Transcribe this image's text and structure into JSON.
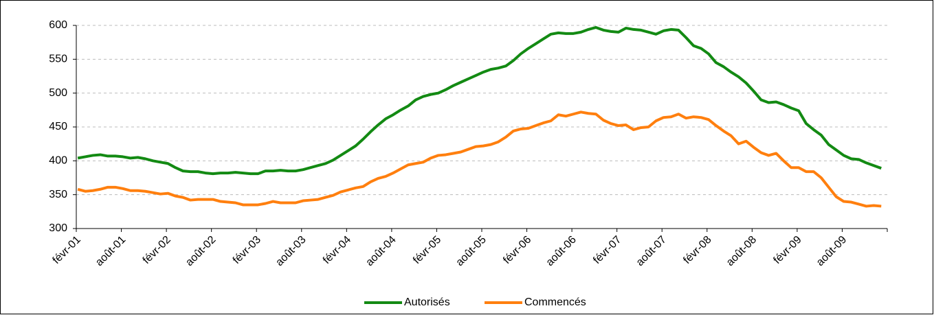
{
  "chart_data": {
    "type": "line",
    "categories": [
      "févr-01",
      null,
      null,
      null,
      null,
      null,
      "août-01",
      null,
      null,
      null,
      null,
      null,
      "févr-02",
      null,
      null,
      null,
      null,
      null,
      "août-02",
      null,
      null,
      null,
      null,
      null,
      "févr-03",
      null,
      null,
      null,
      null,
      null,
      "août-03",
      null,
      null,
      null,
      null,
      null,
      "févr-04",
      null,
      null,
      null,
      null,
      null,
      "août-04",
      null,
      null,
      null,
      null,
      null,
      "févr-05",
      null,
      null,
      null,
      null,
      null,
      "août-05",
      null,
      null,
      null,
      null,
      null,
      "févr-06",
      null,
      null,
      null,
      null,
      null,
      "août-06",
      null,
      null,
      null,
      null,
      null,
      "févr-07",
      null,
      null,
      null,
      null,
      null,
      "août-07",
      null,
      null,
      null,
      null,
      null,
      "févr-08",
      null,
      null,
      null,
      null,
      null,
      "août-08",
      null,
      null,
      null,
      null,
      null,
      "févr-09",
      null,
      null,
      null,
      null,
      null,
      "août-09",
      null,
      null,
      null,
      null,
      null
    ],
    "series": [
      {
        "name": "Autorisés",
        "color": "#138a13",
        "values": [
          404,
          406,
          408,
          409,
          407,
          407,
          406,
          404,
          405,
          403,
          400,
          398,
          396,
          390,
          385,
          384,
          384,
          382,
          381,
          382,
          382,
          383,
          382,
          381,
          381,
          385,
          385,
          386,
          385,
          385,
          387,
          390,
          393,
          396,
          401,
          408,
          415,
          422,
          432,
          443,
          453,
          462,
          468,
          475,
          481,
          490,
          495,
          498,
          500,
          505,
          511,
          516,
          521,
          526,
          531,
          535,
          537,
          540,
          548,
          558,
          566,
          573,
          580,
          587,
          589,
          588,
          588,
          590,
          594,
          597,
          593,
          591,
          590,
          596,
          594,
          593,
          590,
          587,
          592,
          594,
          593,
          582,
          570,
          566,
          558,
          545,
          539,
          531,
          524,
          515,
          503,
          490,
          486,
          487,
          483,
          478,
          474,
          455,
          446,
          438,
          424,
          416,
          408,
          403,
          402,
          397,
          393,
          389
        ]
      },
      {
        "name": "Commencés",
        "color": "#ff7f0e",
        "values": [
          358,
          355,
          356,
          358,
          361,
          361,
          359,
          356,
          356,
          355,
          353,
          351,
          352,
          348,
          346,
          342,
          343,
          343,
          343,
          340,
          339,
          338,
          335,
          335,
          335,
          337,
          340,
          338,
          338,
          338,
          341,
          342,
          343,
          346,
          349,
          354,
          357,
          360,
          362,
          369,
          374,
          377,
          382,
          388,
          394,
          396,
          398,
          404,
          408,
          409,
          411,
          413,
          417,
          421,
          422,
          424,
          428,
          435,
          444,
          447,
          448,
          452,
          456,
          459,
          468,
          466,
          469,
          472,
          470,
          469,
          460,
          455,
          452,
          453,
          446,
          449,
          450,
          459,
          464,
          465,
          469,
          463,
          465,
          464,
          461,
          452,
          444,
          437,
          425,
          429,
          420,
          412,
          408,
          411,
          400,
          390,
          390,
          384,
          384,
          375,
          361,
          347,
          340,
          339,
          336,
          333,
          334,
          333
        ]
      }
    ],
    "ylim": [
      300,
      600
    ],
    "yticks": [
      300,
      350,
      400,
      450,
      500,
      550,
      600
    ],
    "grid": true,
    "legend": "bottom"
  }
}
